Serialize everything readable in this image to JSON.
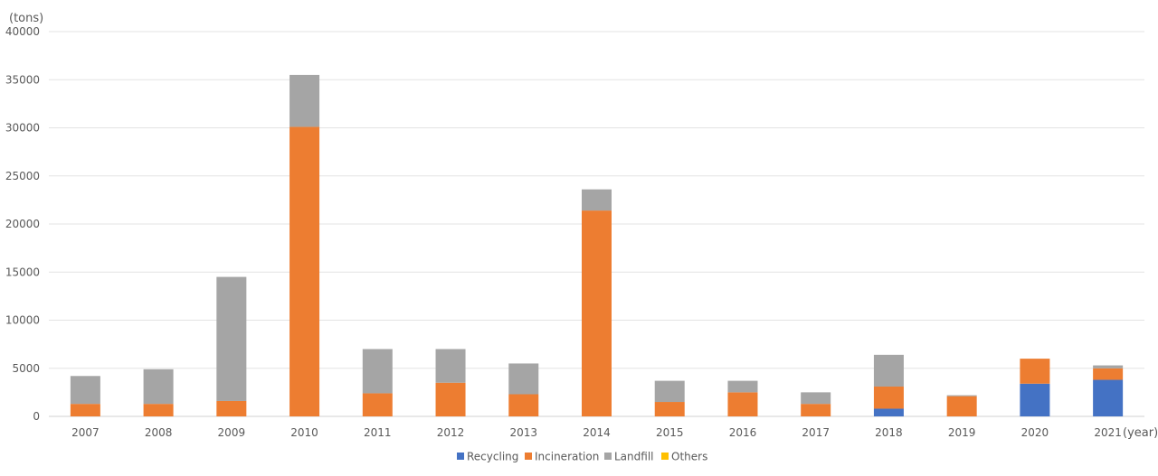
{
  "chart_data": {
    "type": "bar",
    "stacked": true,
    "y_unit_label": "(tons)",
    "x_unit_label": "(year)",
    "categories": [
      "2007",
      "2008",
      "2009",
      "2010",
      "2011",
      "2012",
      "2013",
      "2014",
      "2015",
      "2016",
      "2017",
      "2018",
      "2019",
      "2020",
      "2021"
    ],
    "y_ticks": [
      "0",
      "5000",
      "10000",
      "15000",
      "20000",
      "25000",
      "30000",
      "35000",
      "40000"
    ],
    "ylim": [
      0,
      40000
    ],
    "grid": true,
    "legend_position": "bottom",
    "series": [
      {
        "name": "Recycling",
        "color": "#4472C4",
        "values": [
          0,
          0,
          0,
          0,
          0,
          0,
          0,
          0,
          0,
          0,
          0,
          800,
          0,
          3400,
          3800
        ]
      },
      {
        "name": "Incineration",
        "color": "#ED7D31",
        "values": [
          1300,
          1300,
          1600,
          30100,
          2400,
          3500,
          2300,
          21400,
          1500,
          2500,
          1300,
          2300,
          2100,
          2600,
          1200
        ]
      },
      {
        "name": "Landfill",
        "color": "#A5A5A5",
        "values": [
          2900,
          3600,
          12900,
          5400,
          4600,
          3500,
          3200,
          2200,
          2200,
          1200,
          1200,
          3300,
          100,
          0,
          300
        ]
      },
      {
        "name": "Others",
        "color": "#FFC000",
        "values": [
          0,
          0,
          0,
          0,
          0,
          0,
          0,
          0,
          0,
          0,
          0,
          0,
          0,
          0,
          0
        ]
      }
    ]
  }
}
